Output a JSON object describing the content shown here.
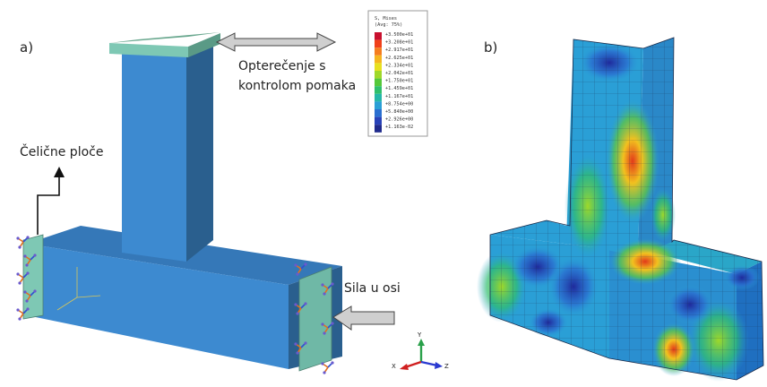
{
  "panels": {
    "a": {
      "label": "a)"
    },
    "b": {
      "label": "b)"
    }
  },
  "annotations": {
    "load_line1": "Opterečenje s",
    "load_line2": "kontrolom pomaka",
    "plates": "Čelične ploče",
    "axial_force": "Sila u osi"
  },
  "legend": {
    "title_line1": "S, Mises",
    "title_line2": "(Avg: 75%)",
    "entries": [
      "+3.500e+01",
      "+3.208e+01",
      "+2.917e+01",
      "+2.625e+01",
      "+2.334e+01",
      "+2.042e+01",
      "+1.750e+01",
      "+1.459e+01",
      "+1.167e+01",
      "+8.754e+00",
      "+5.840e+00",
      "+2.926e+00",
      "+1.163e-02"
    ],
    "colors": [
      "#c8102e",
      "#f0401a",
      "#f57d1f",
      "#f5b51f",
      "#e8e020",
      "#9fd82a",
      "#55c83a",
      "#2fbf6c",
      "#25b7a8",
      "#2a9fd6",
      "#2a6fd0",
      "#2842b8",
      "#1f2a8c"
    ]
  },
  "triad": {
    "y": "Y",
    "x": "X",
    "z": "Z"
  },
  "colors": {
    "body_front": "#3d8ad0",
    "body_side": "#2a5f8e",
    "body_top": "#3578b8",
    "plate": "#7ec8b4",
    "arrow_fill": "#cfcfcf"
  }
}
